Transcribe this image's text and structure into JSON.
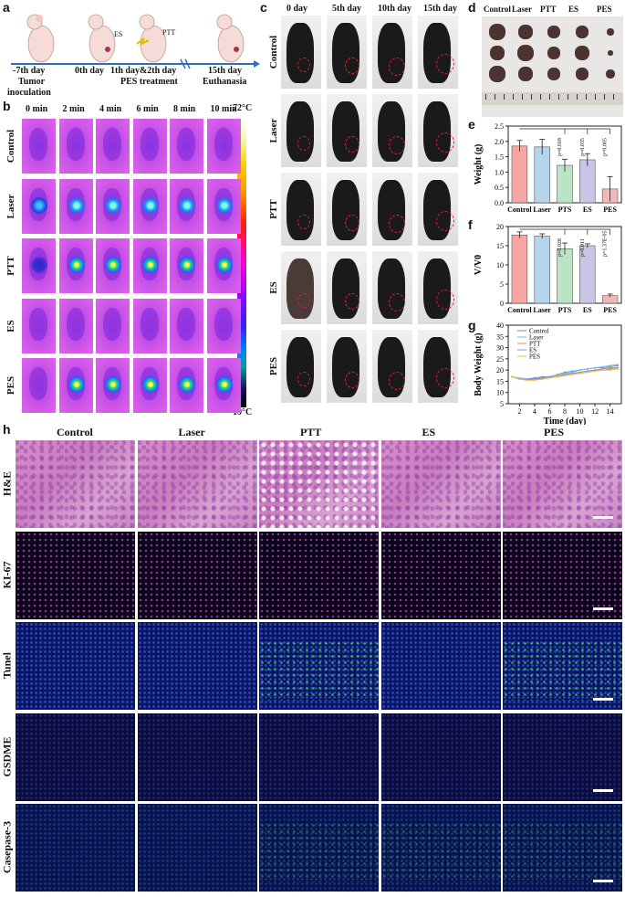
{
  "panel_letters": {
    "a": "a",
    "b": "b",
    "c": "c",
    "d": "d",
    "e": "e",
    "f": "f",
    "g": "g",
    "h": "h"
  },
  "timeline": {
    "t1": "-7th day",
    "t1b": "Tumor",
    "t1c": "inoculation",
    "t2": "0th day",
    "t3": "1th day&2th day",
    "t3b": "PES treatment",
    "t4": "15th day",
    "t4b": "Euthanasia",
    "es": "ES",
    "ptt": "PTT"
  },
  "thermal": {
    "times": [
      "0 min",
      "2 min",
      "4 min",
      "6 min",
      "8 min",
      "10 min"
    ],
    "rows": [
      "Control",
      "Laser",
      "PTT",
      "ES",
      "PES"
    ],
    "scale_max": "72°C",
    "scale_min": "19°C"
  },
  "photos": {
    "days": [
      "0 day",
      "5th day",
      "10th day",
      "15th day"
    ],
    "rows": [
      "Control",
      "Laser",
      "PTT",
      "ES",
      "PES"
    ]
  },
  "tumors": {
    "groups": [
      "Control",
      "Laser",
      "PTT",
      "ES",
      "PES"
    ]
  },
  "chart_e": {
    "ylabel": "Weight (g)",
    "ticks": [
      "0.0",
      "0.5",
      "1.0",
      "1.5",
      "2.0",
      "2.5"
    ],
    "cats": [
      "Control",
      "Laser",
      "PTS",
      "ES",
      "PES"
    ],
    "pvals": [
      "p=0.018",
      "p=0.035",
      "p=0.005"
    ]
  },
  "chart_f": {
    "ylabel": "V/V0",
    "ticks": [
      "0",
      "5",
      "10",
      "15",
      "20"
    ],
    "cats": [
      "Control",
      "Laser",
      "PTS",
      "ES",
      "PES"
    ],
    "pvals": [
      "p=0.028",
      "p=0.011",
      "p=1.37E-05"
    ]
  },
  "chart_g": {
    "ylabel": "Body Weight (g)",
    "xlabel": "Time (day)",
    "yticks": [
      "5",
      "10",
      "15",
      "20",
      "25",
      "30",
      "35",
      "40"
    ],
    "xticks": [
      "2",
      "4",
      "6",
      "8",
      "10",
      "12",
      "14"
    ],
    "legend": [
      "Control",
      "Laser",
      "PTT",
      "ES",
      "PES"
    ]
  },
  "histo": {
    "cols": [
      "Control",
      "Laser",
      "PTT",
      "ES",
      "PES"
    ],
    "rows": [
      "H&E",
      "KI-67",
      "Tunel",
      "GSDME",
      "Casepase-3"
    ]
  },
  "chart_data": [
    {
      "type": "bar",
      "categories": [
        "Control",
        "Laser",
        "PTS",
        "ES",
        "PES"
      ],
      "values": [
        1.85,
        1.82,
        1.22,
        1.4,
        0.45
      ],
      "errors": [
        0.18,
        0.25,
        0.2,
        0.2,
        0.4
      ],
      "ylabel": "Weight (g)",
      "ylim": [
        0,
        2.5
      ],
      "colors": [
        "#f7a7a3",
        "#b6d4ec",
        "#b9e5c5",
        "#c9c5e6",
        "#f2b8b5"
      ]
    },
    {
      "type": "bar",
      "categories": [
        "Control",
        "Laser",
        "PTS",
        "ES",
        "PES"
      ],
      "values": [
        17.8,
        17.5,
        14.2,
        15.0,
        2.0
      ],
      "errors": [
        0.8,
        0.6,
        1.5,
        0.5,
        0.4
      ],
      "ylabel": "V/V0",
      "ylim": [
        0,
        20
      ],
      "colors": [
        "#f7a7a3",
        "#b6d4ec",
        "#b9e5c5",
        "#c9c5e6",
        "#f2b8b5"
      ]
    },
    {
      "type": "line",
      "x": [
        1,
        2,
        3,
        4,
        5,
        6,
        7,
        8,
        9,
        10,
        11,
        12,
        13,
        14,
        15
      ],
      "series": [
        {
          "name": "Control",
          "values": [
            17,
            16,
            16,
            16.5,
            17,
            17,
            18,
            19,
            19.5,
            20,
            20.5,
            21,
            21,
            21.5,
            22
          ],
          "color": "#6a8fd6"
        },
        {
          "name": "Laser",
          "values": [
            17,
            16.5,
            16,
            16,
            16.5,
            17,
            18,
            18.5,
            19,
            20,
            20.5,
            21,
            21.5,
            22,
            22.5
          ],
          "color": "#79b9e8"
        },
        {
          "name": "PTT",
          "values": [
            17,
            16,
            15.5,
            16,
            16,
            16.5,
            17.5,
            18,
            18.5,
            19,
            19.5,
            20,
            20.5,
            21,
            21
          ],
          "color": "#e08a5c"
        },
        {
          "name": "ES",
          "values": [
            17,
            16,
            16,
            16,
            16.5,
            17,
            17,
            18,
            18.5,
            19,
            19.5,
            20,
            20,
            20.5,
            21
          ],
          "color": "#8c8cd0"
        },
        {
          "name": "PES",
          "values": [
            17,
            16,
            15.5,
            15.5,
            16,
            16.5,
            17,
            17.5,
            18,
            18.5,
            19,
            19.5,
            20,
            20,
            20.5
          ],
          "color": "#e3c049"
        }
      ],
      "xlabel": "Time (day)",
      "ylabel": "Body Weight (g)",
      "ylim": [
        5,
        40
      ]
    }
  ]
}
